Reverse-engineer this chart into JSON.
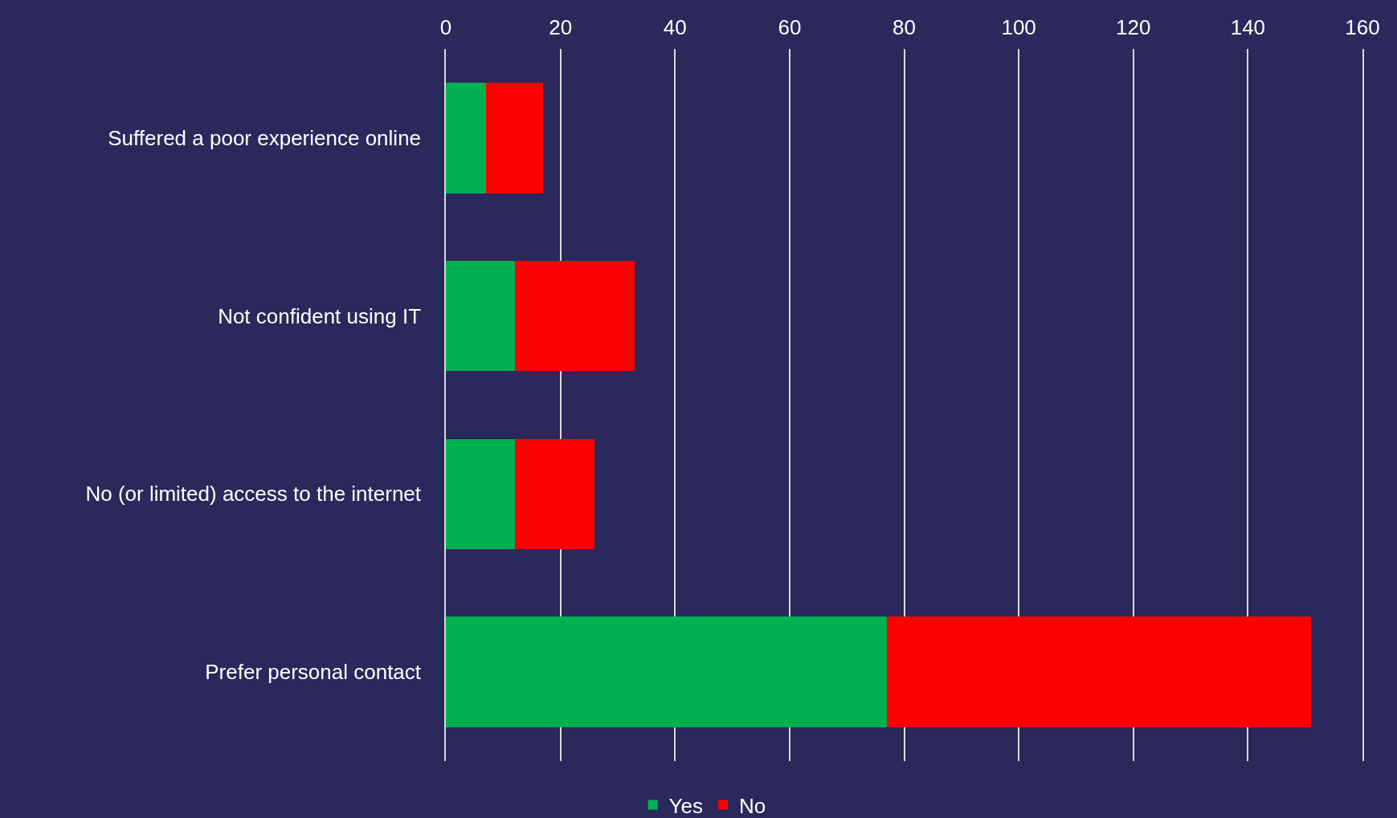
{
  "chart_data": {
    "type": "bar",
    "orientation": "horizontal",
    "stacked": true,
    "categories": [
      "Suffered a poor experience online",
      "Not confident using IT",
      "No (or limited) access to the internet",
      "Prefer personal contact"
    ],
    "series": [
      {
        "name": "Yes",
        "color": "#00b050",
        "values": [
          7,
          12,
          12,
          77
        ]
      },
      {
        "name": "No",
        "color": "#ff0000",
        "values": [
          10,
          21,
          14,
          74
        ]
      }
    ],
    "xlim": [
      0,
      160
    ],
    "xticks": [
      0,
      20,
      40,
      60,
      80,
      100,
      120,
      140,
      160
    ],
    "grid": "x",
    "legend": "bottom"
  }
}
